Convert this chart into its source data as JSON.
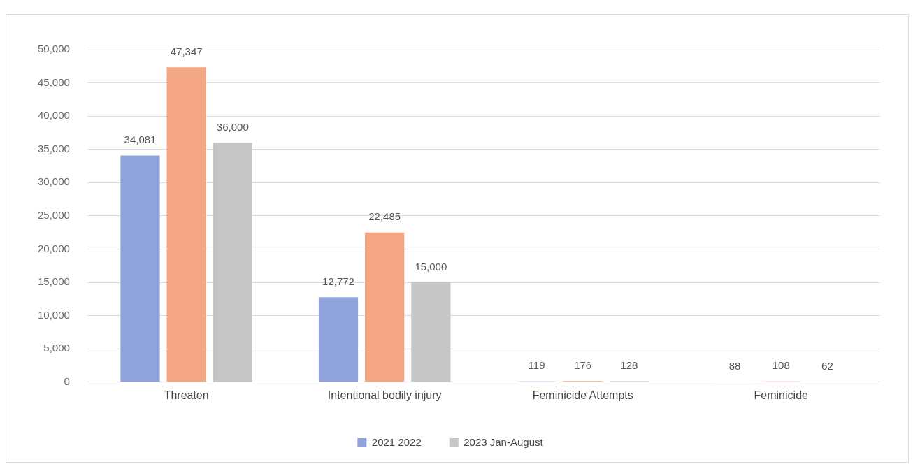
{
  "chart_data": {
    "type": "bar",
    "categories": [
      "Threaten",
      "Intentional bodily injury",
      "Feminicide Attempts",
      "Feminicide"
    ],
    "series": [
      {
        "name": "2021 2022",
        "color": "#8fa2dc",
        "values": [
          34081,
          12772,
          119,
          88
        ],
        "value_labels": [
          "34,081",
          "12,772",
          "119",
          "88"
        ]
      },
      {
        "color": "#f3a584",
        "values": [
          47347,
          22485,
          176,
          108
        ],
        "value_labels": [
          "47,347",
          "22,485",
          "176",
          "108"
        ]
      },
      {
        "name": "2023 Jan-August",
        "color": "#c6c6c6",
        "values": [
          36000,
          15000,
          128,
          62
        ],
        "value_labels": [
          "36,000",
          "15,000",
          "128",
          "62"
        ]
      }
    ],
    "ylim": [
      0,
      50000
    ],
    "yticks": [
      {
        "value": 0,
        "label": "0"
      },
      {
        "value": 5000,
        "label": "5,000"
      },
      {
        "value": 10000,
        "label": "10,000"
      },
      {
        "value": 15000,
        "label": "15,000"
      },
      {
        "value": 20000,
        "label": "20,000"
      },
      {
        "value": 25000,
        "label": "25,000"
      },
      {
        "value": 30000,
        "label": "30,000"
      },
      {
        "value": 35000,
        "label": "35,000"
      },
      {
        "value": 40000,
        "label": "40,000"
      },
      {
        "value": 45000,
        "label": "45,000"
      },
      {
        "value": 50000,
        "label": "50,000"
      }
    ],
    "grid": "y",
    "legend": "bottom"
  }
}
